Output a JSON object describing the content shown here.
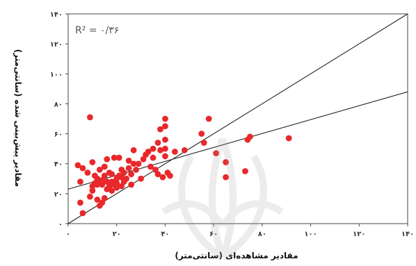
{
  "chart_data": {
    "type": "scatter",
    "title": "",
    "annotation": "R² = ۰/۳۶",
    "xlabel": "مقادیر مشاهده‌ای (سانتی‌متر)",
    "ylabel": "مقادیر پیش‌بینی شده (سانتی‌متر)",
    "xlim": [
      0,
      140
    ],
    "ylim": [
      0,
      140
    ],
    "x_ticks": [
      0,
      20,
      40,
      60,
      80,
      100,
      120,
      140
    ],
    "x_tick_labels": [
      "۰",
      "۲۰",
      "۴۰",
      "۶۰",
      "۸۰",
      "۱۰۰",
      "۱۲۰",
      "۱۴۰"
    ],
    "y_ticks": [
      0,
      20,
      40,
      60,
      80,
      100,
      120,
      140
    ],
    "y_tick_labels": [
      "۰",
      "۲۰",
      "۴۰",
      "۶۰",
      "۸۰",
      "۱۰۰",
      "۱۲۰",
      "۱۴۰"
    ],
    "grid": false,
    "points_color": "#e8282b",
    "line_color": "#222222",
    "points": [
      {
        "x": 4,
        "y": 39
      },
      {
        "x": 5,
        "y": 28
      },
      {
        "x": 5,
        "y": 14
      },
      {
        "x": 6,
        "y": 7
      },
      {
        "x": 6,
        "y": 37
      },
      {
        "x": 8,
        "y": 34
      },
      {
        "x": 9,
        "y": 18
      },
      {
        "x": 10,
        "y": 25
      },
      {
        "x": 10,
        "y": 41
      },
      {
        "x": 9,
        "y": 71
      },
      {
        "x": 10,
        "y": 22
      },
      {
        "x": 11,
        "y": 27
      },
      {
        "x": 11,
        "y": 32
      },
      {
        "x": 12,
        "y": 26
      },
      {
        "x": 12,
        "y": 16
      },
      {
        "x": 12,
        "y": 30
      },
      {
        "x": 13,
        "y": 12
      },
      {
        "x": 13,
        "y": 27
      },
      {
        "x": 13,
        "y": 36
      },
      {
        "x": 14,
        "y": 14
      },
      {
        "x": 14,
        "y": 26
      },
      {
        "x": 14,
        "y": 29
      },
      {
        "x": 15,
        "y": 38
      },
      {
        "x": 15,
        "y": 32
      },
      {
        "x": 15,
        "y": 17
      },
      {
        "x": 16,
        "y": 23
      },
      {
        "x": 16,
        "y": 43
      },
      {
        "x": 16,
        "y": 28
      },
      {
        "x": 17,
        "y": 25
      },
      {
        "x": 17,
        "y": 34
      },
      {
        "x": 18,
        "y": 33
      },
      {
        "x": 18,
        "y": 22
      },
      {
        "x": 18,
        "y": 28
      },
      {
        "x": 19,
        "y": 44
      },
      {
        "x": 19,
        "y": 26
      },
      {
        "x": 20,
        "y": 30
      },
      {
        "x": 20,
        "y": 27
      },
      {
        "x": 20,
        "y": 24
      },
      {
        "x": 21,
        "y": 44
      },
      {
        "x": 21,
        "y": 32
      },
      {
        "x": 22,
        "y": 31
      },
      {
        "x": 22,
        "y": 25
      },
      {
        "x": 22,
        "y": 36
      },
      {
        "x": 23,
        "y": 34
      },
      {
        "x": 23,
        "y": 28
      },
      {
        "x": 24,
        "y": 30
      },
      {
        "x": 25,
        "y": 42
      },
      {
        "x": 25,
        "y": 37
      },
      {
        "x": 26,
        "y": 33
      },
      {
        "x": 26,
        "y": 26
      },
      {
        "x": 27,
        "y": 49
      },
      {
        "x": 27,
        "y": 40
      },
      {
        "x": 28,
        "y": 36
      },
      {
        "x": 29,
        "y": 40
      },
      {
        "x": 30,
        "y": 30
      },
      {
        "x": 31,
        "y": 43
      },
      {
        "x": 32,
        "y": 46
      },
      {
        "x": 33,
        "y": 48
      },
      {
        "x": 34,
        "y": 38
      },
      {
        "x": 35,
        "y": 50
      },
      {
        "x": 35,
        "y": 44
      },
      {
        "x": 36,
        "y": 36
      },
      {
        "x": 37,
        "y": 54
      },
      {
        "x": 37,
        "y": 33
      },
      {
        "x": 38,
        "y": 63
      },
      {
        "x": 38,
        "y": 49
      },
      {
        "x": 39,
        "y": 31
      },
      {
        "x": 40,
        "y": 70
      },
      {
        "x": 40,
        "y": 65
      },
      {
        "x": 40,
        "y": 56
      },
      {
        "x": 40,
        "y": 50
      },
      {
        "x": 40,
        "y": 45
      },
      {
        "x": 41,
        "y": 34
      },
      {
        "x": 42,
        "y": 32
      },
      {
        "x": 44,
        "y": 48
      },
      {
        "x": 48,
        "y": 49
      },
      {
        "x": 55,
        "y": 60
      },
      {
        "x": 56,
        "y": 54
      },
      {
        "x": 58,
        "y": 70
      },
      {
        "x": 61,
        "y": 47
      },
      {
        "x": 65,
        "y": 41
      },
      {
        "x": 65,
        "y": 31
      },
      {
        "x": 73,
        "y": 35
      },
      {
        "x": 74,
        "y": 56
      },
      {
        "x": 75,
        "y": 58
      },
      {
        "x": 91,
        "y": 57
      }
    ],
    "lines": [
      {
        "name": "1:1",
        "x": [
          0,
          140
        ],
        "y": [
          0,
          140
        ]
      },
      {
        "name": "fit",
        "x": [
          0,
          140
        ],
        "y": [
          23,
          88
        ]
      }
    ]
  }
}
